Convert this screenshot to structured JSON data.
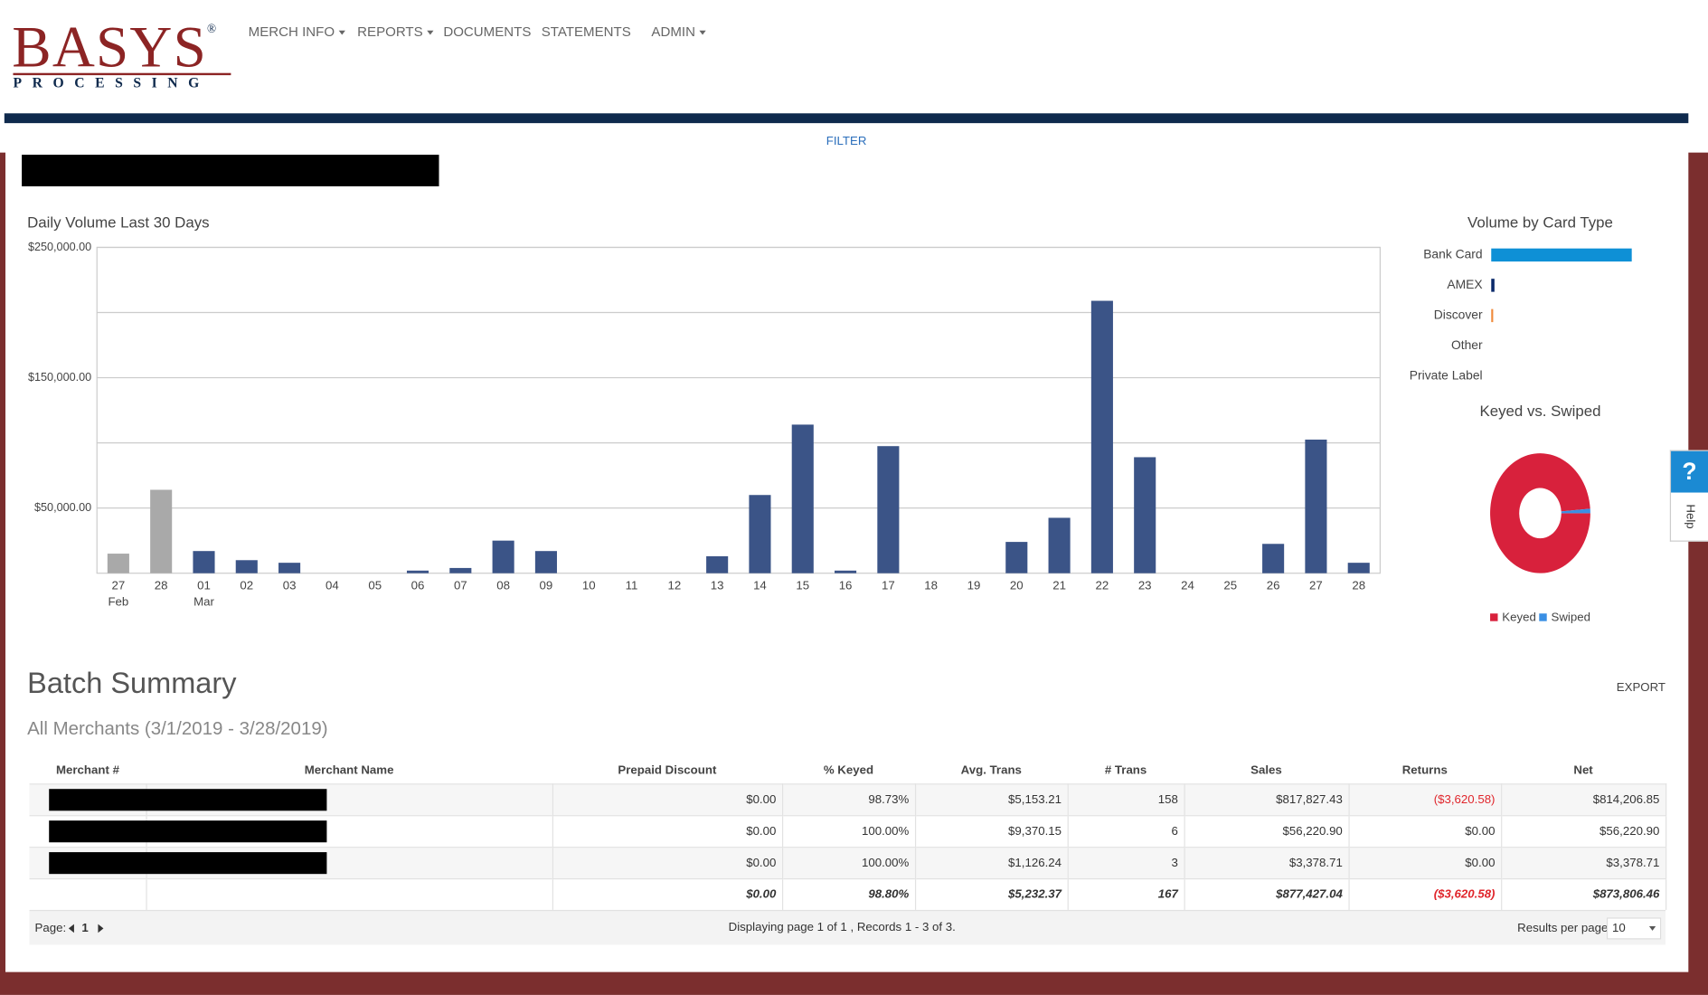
{
  "logo": {
    "name": "BASYS",
    "mark": "®",
    "sub": "PROCESSING"
  },
  "nav": [
    "MERCH INFO",
    "REPORTS",
    "DOCUMENTS",
    "STATEMENTS",
    "ADMIN"
  ],
  "filter": "FILTER",
  "help": "Help",
  "chart_data": [
    {
      "type": "bar",
      "title": "Daily Volume Last 30 Days",
      "categories": [
        "27",
        "28",
        "01",
        "02",
        "03",
        "04",
        "05",
        "06",
        "07",
        "08",
        "09",
        "10",
        "11",
        "12",
        "13",
        "14",
        "15",
        "16",
        "17",
        "18",
        "19",
        "20",
        "21",
        "22",
        "23",
        "24",
        "25",
        "26",
        "27",
        "28"
      ],
      "month_labels": [
        "Feb",
        null,
        "Mar",
        null,
        null,
        null,
        null,
        null,
        null,
        null,
        null,
        null,
        null,
        null,
        null,
        null,
        null,
        null,
        null,
        null,
        null,
        null,
        null,
        null,
        null,
        null,
        null,
        null,
        null,
        null
      ],
      "values": [
        15000,
        64000,
        17000,
        10000,
        8000,
        0,
        0,
        2000,
        4000,
        25000,
        17000,
        0,
        0,
        0,
        13000,
        60000,
        114000,
        2000,
        97500,
        0,
        0,
        24000,
        42500,
        209000,
        89000,
        0,
        0,
        22500,
        102500,
        8000
      ],
      "colors": [
        "#a9a9a9",
        "#a9a9a9",
        "#3b5487",
        "#3b5487",
        "#3b5487",
        "#3b5487",
        "#3b5487",
        "#3b5487",
        "#3b5487",
        "#3b5487",
        "#3b5487",
        "#3b5487",
        "#3b5487",
        "#3b5487",
        "#3b5487",
        "#3b5487",
        "#3b5487",
        "#3b5487",
        "#3b5487",
        "#3b5487",
        "#3b5487",
        "#3b5487",
        "#3b5487",
        "#3b5487",
        "#3b5487",
        "#3b5487",
        "#3b5487",
        "#3b5487",
        "#3b5487",
        "#3b5487"
      ],
      "ylim": [
        0,
        250000
      ],
      "yticks": [
        {
          "value": 50000,
          "label": "$50,000.00"
        },
        {
          "value": 150000,
          "label": "$150,000.00"
        },
        {
          "value": 250000,
          "label": "$250,000.00"
        }
      ],
      "minor_yticks": [
        100000,
        200000
      ],
      "grid": true
    },
    {
      "type": "hbar",
      "title": "Volume by Card Type",
      "categories": [
        "Bank Card",
        "AMEX",
        "Discover",
        "Other",
        "Private Label"
      ],
      "values": [
        870000,
        20000,
        12000,
        0,
        0
      ],
      "colors": [
        "#0e90d6",
        "#0b2a6b",
        "#f08a3c",
        "#888888",
        "#888888"
      ]
    },
    {
      "type": "pie",
      "title": "Keyed vs. Swiped",
      "categories": [
        "Keyed",
        "Swiped"
      ],
      "values": [
        98.8,
        1.2
      ],
      "colors": [
        "#d8213c",
        "#3a8fe4"
      ]
    }
  ],
  "batch": {
    "title": "Batch Summary",
    "subtitle": "All Merchants (3/1/2019 - 3/28/2019)",
    "export": "EXPORT",
    "columns": [
      "Merchant #",
      "Merchant Name",
      "Prepaid Discount",
      "% Keyed",
      "Avg. Trans",
      "# Trans",
      "Sales",
      "Returns",
      "Net"
    ],
    "rows": [
      [
        "$0.00",
        "98.73%",
        "$5,153.21",
        "158",
        "$817,827.43",
        "($3,620.58)",
        "$814,206.85"
      ],
      [
        "$0.00",
        "100.00%",
        "$9,370.15",
        "6",
        "$56,220.90",
        "$0.00",
        "$56,220.90"
      ],
      [
        "$0.00",
        "100.00%",
        "$1,126.24",
        "3",
        "$3,378.71",
        "$0.00",
        "$3,378.71"
      ]
    ],
    "totals": [
      "$0.00",
      "98.80%",
      "$5,232.37",
      "167",
      "$877,427.04",
      "($3,620.58)",
      "$873,806.46"
    ],
    "pager": {
      "page_label": "Page:",
      "page": "1",
      "info": "Displaying page 1 of 1 , Records 1 - 3 of 3.",
      "per_page_label": "Results per page:",
      "per_page": "10"
    }
  }
}
